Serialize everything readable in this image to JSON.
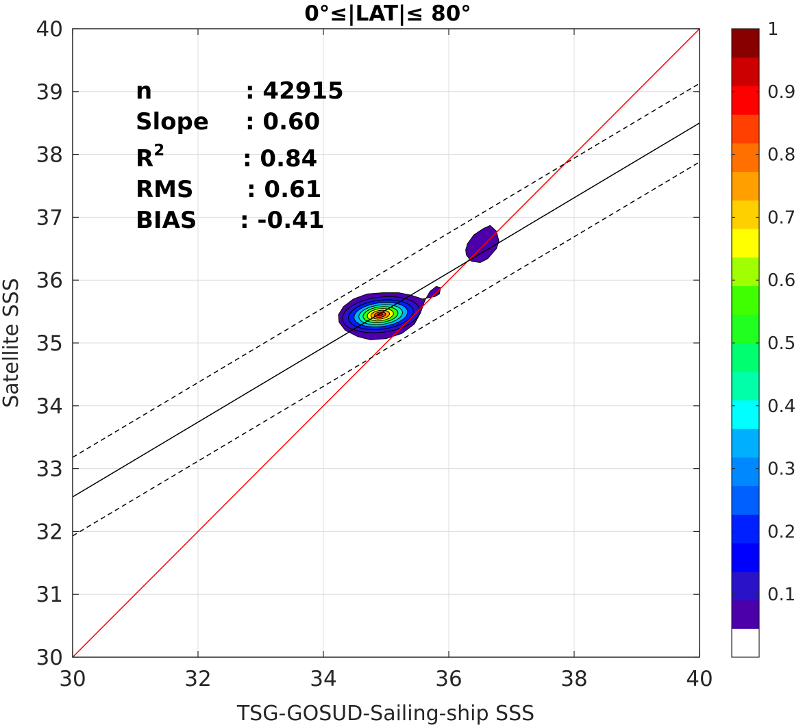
{
  "chart_data": {
    "type": "scatter",
    "title": "0°≤|LAT|≤ 80°",
    "xlabel": "TSG-GOSUD-Sailing-ship SSS",
    "ylabel": "Satellite SSS",
    "xlim": [
      30,
      40
    ],
    "ylim": [
      30,
      40
    ],
    "xticks": [
      "30",
      "32",
      "34",
      "36",
      "38",
      "40"
    ],
    "yticks": [
      "30",
      "31",
      "32",
      "33",
      "34",
      "35",
      "36",
      "37",
      "38",
      "39",
      "40"
    ],
    "grid": true,
    "stats": {
      "n": {
        "label": "n",
        "value": ": 42915"
      },
      "slope": {
        "label": "Slope",
        "value": ": 0.60"
      },
      "r2": {
        "label": "R",
        "sup": "2",
        "value": ": 0.84"
      },
      "rms": {
        "label": "RMS",
        "value": ": 0.61"
      },
      "bias": {
        "label": "BIAS",
        "value": ": -0.41"
      }
    },
    "lines": [
      {
        "kind": "one-to-one",
        "color": "#ff0000",
        "style": "solid",
        "x": [
          30,
          40
        ],
        "y": [
          30,
          40
        ]
      },
      {
        "kind": "regression",
        "color": "#000000",
        "style": "solid",
        "x": [
          30,
          40
        ],
        "y": [
          32.55,
          38.5
        ]
      },
      {
        "kind": "regression-plus-rms",
        "color": "#000000",
        "style": "dashed",
        "x": [
          30,
          40
        ],
        "y": [
          33.18,
          39.13
        ]
      },
      {
        "kind": "regression-minus-rms",
        "color": "#000000",
        "style": "dashed",
        "x": [
          30,
          40
        ],
        "y": [
          31.93,
          37.88
        ]
      }
    ],
    "density_contours": {
      "peak": {
        "x": 34.9,
        "y": 35.45
      },
      "lobes": [
        {
          "name": "main",
          "center": [
            34.9,
            35.45
          ]
        },
        {
          "name": "upper-right",
          "center": [
            36.5,
            36.55
          ]
        }
      ]
    },
    "colorbar": {
      "range": [
        0,
        1
      ],
      "ticks": [
        "0.1",
        "0.2",
        "0.3",
        "0.4",
        "0.5",
        "0.6",
        "0.7",
        "0.8",
        "0.9",
        "1"
      ],
      "colors": [
        "#ffffff",
        "#4b00aa",
        "#2a12c8",
        "#0000ff",
        "#0020ff",
        "#0060ff",
        "#0088ff",
        "#00b0ff",
        "#00ffff",
        "#00ffa8",
        "#00ff70",
        "#20ff20",
        "#40ff00",
        "#a0ff00",
        "#ffff00",
        "#ffd000",
        "#ffa000",
        "#ff7000",
        "#ff4000",
        "#ff0000",
        "#cc0000",
        "#880000"
      ]
    }
  }
}
